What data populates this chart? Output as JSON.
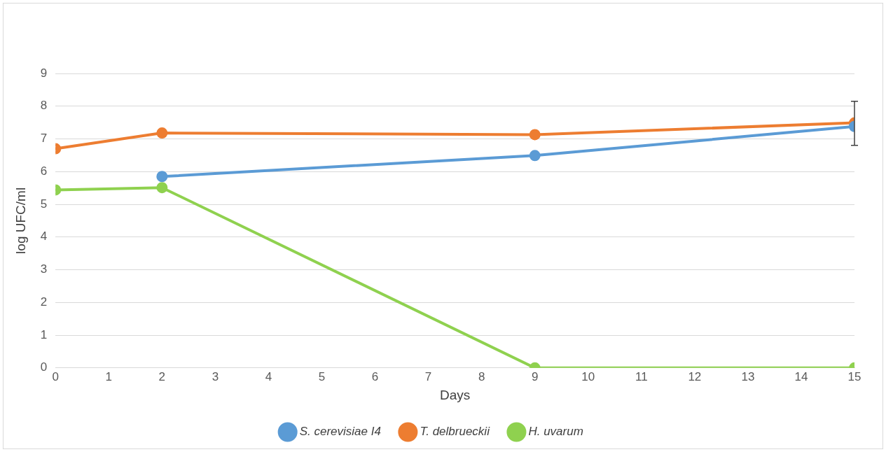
{
  "chart_data": {
    "type": "line",
    "xlabel": "Days",
    "ylabel": "log UFC/ml",
    "x": [
      0,
      2,
      9,
      15
    ],
    "series": [
      {
        "name": "S. cerevisiae I4",
        "color": "#5b9bd5",
        "values": [
          null,
          5.85,
          6.49,
          7.38
        ]
      },
      {
        "name": "T. delbrueckii",
        "color": "#ed7d31",
        "values": [
          6.7,
          7.18,
          7.13,
          7.49
        ],
        "errors": [
          null,
          null,
          null,
          [
            6.8,
            8.15
          ]
        ]
      },
      {
        "name": "H. uvarum",
        "color": "#8fd14f",
        "values": [
          5.44,
          5.51,
          0,
          0
        ]
      }
    ],
    "xlim": [
      0,
      15
    ],
    "xticks": [
      0,
      1,
      2,
      3,
      4,
      5,
      6,
      7,
      8,
      9,
      10,
      11,
      12,
      13,
      14,
      15
    ],
    "ylim": [
      0,
      9
    ],
    "yticks": [
      0,
      1,
      2,
      3,
      4,
      5,
      6,
      7,
      8,
      9
    ],
    "grid": "y",
    "legend": "bottom",
    "marker": "circle",
    "line_style": "solid"
  }
}
